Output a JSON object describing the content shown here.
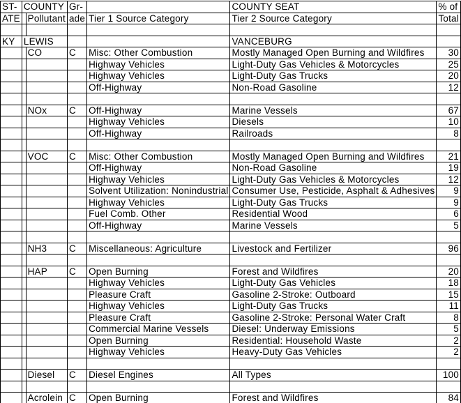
{
  "table": {
    "header": {
      "state_line1": "ST-",
      "state_line2": "ATE",
      "county": "COUNTY",
      "pollutant": "Pollutant",
      "grade_line1": "Gr-",
      "grade_line2": "ade",
      "tier1": "Tier 1 Source Category",
      "county_seat": "COUNTY SEAT",
      "tier2": "Tier 2 Source Category",
      "pct_line1": "% of",
      "pct_line2": "Total"
    },
    "group": {
      "state": "KY",
      "county": "LEWIS",
      "county_seat": "VANCEBURG"
    },
    "rows": [
      {
        "pollutant": "CO",
        "grade": "C",
        "tier1": "Misc: Other Combustion",
        "tier2": "Mostly Managed Open Burning and Wildfires",
        "pct": 30
      },
      {
        "tier1": "Highway Vehicles",
        "tier2": "Light-Duty Gas Vehicles & Motorcycles",
        "pct": 25
      },
      {
        "tier1": "Highway Vehicles",
        "tier2": "Light-Duty Gas Trucks",
        "pct": 20
      },
      {
        "tier1": "Off-Highway",
        "tier2": "Non-Road Gasoline",
        "pct": 12
      },
      {},
      {
        "pollutant": "NOx",
        "grade": "C",
        "tier1": "Off-Highway",
        "tier2": "Marine Vessels",
        "pct": 67
      },
      {
        "tier1": "Highway Vehicles",
        "tier2": "Diesels",
        "pct": 10
      },
      {
        "tier1": "Off-Highway",
        "tier2": "Railroads",
        "pct": 8
      },
      {},
      {
        "pollutant": "VOC",
        "grade": "C",
        "tier1": "Misc: Other Combustion",
        "tier2": "Mostly Managed Open Burning and Wildfires",
        "pct": 21
      },
      {
        "tier1": "Off-Highway",
        "tier2": "Non-Road Gasoline",
        "pct": 19
      },
      {
        "tier1": "Highway Vehicles",
        "tier2": "Light-Duty Gas Vehicles & Motorcycles",
        "pct": 12
      },
      {
        "tier1": "Solvent Utilization: Nonindustrial",
        "tier2": "Consumer Use, Pesticide, Asphalt & Adhesives",
        "pct": 9
      },
      {
        "tier1": "Highway Vehicles",
        "tier2": "Light-Duty Gas Trucks",
        "pct": 9
      },
      {
        "tier1": "Fuel Comb. Other",
        "tier2": "Residential Wood",
        "pct": 6
      },
      {
        "tier1": "Off-Highway",
        "tier2": "Marine Vessels",
        "pct": 5
      },
      {},
      {
        "pollutant": "NH3",
        "grade": "C",
        "tier1": "Miscellaneous: Agriculture",
        "tier2": "Livestock and Fertilizer",
        "pct": 96
      },
      {},
      {
        "pollutant": "HAP",
        "grade": "C",
        "tier1": "Open Burning",
        "tier2": "Forest and Wildfires",
        "pct": 20
      },
      {
        "tier1": "Highway Vehicles",
        "tier2": "Light-Duty Gas Vehicles",
        "pct": 18
      },
      {
        "tier1": "Pleasure Craft",
        "tier2": "Gasoline 2-Stroke: Outboard",
        "pct": 15
      },
      {
        "tier1": "Highway Vehicles",
        "tier2": "Light-Duty Gas Trucks",
        "pct": 11
      },
      {
        "tier1": "Pleasure Craft",
        "tier2": "Gasoline 2-Stroke: Personal Water Craft",
        "pct": 8
      },
      {
        "tier1": "Commercial Marine Vessels",
        "tier2": "Diesel: Underway Emissions",
        "pct": 5
      },
      {
        "tier1": "Open Burning",
        "tier2": "Residential: Household Waste",
        "pct": 2
      },
      {
        "tier1": "Highway Vehicles",
        "tier2": "Heavy-Duty Gas Vehicles",
        "pct": 2
      },
      {},
      {
        "pollutant": "Diesel",
        "grade": "C",
        "tier1": "Diesel Engines",
        "tier2": "All Types",
        "pct": 100
      },
      {},
      {
        "pollutant": "Acrolein",
        "grade": "C",
        "tier1": "Open Burning",
        "tier2": "Forest and Wildfires",
        "pct": 84
      }
    ]
  }
}
